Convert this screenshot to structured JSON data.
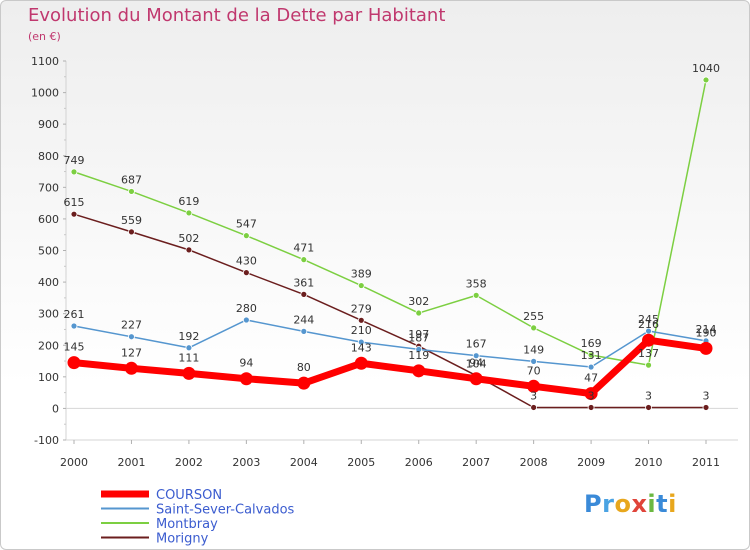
{
  "title": "Evolution du Montant de la Dette par Habitant",
  "subtitle": "(en €)",
  "brand": {
    "text": "Proxiti",
    "letters": [
      {
        "ch": "P",
        "color": "#3a8ad8"
      },
      {
        "ch": "r",
        "color": "#4aa3e3"
      },
      {
        "ch": "o",
        "color": "#e8a71d"
      },
      {
        "ch": "x",
        "color": "#e0443a"
      },
      {
        "ch": "i",
        "color": "#6bb841"
      },
      {
        "ch": "t",
        "color": "#3a8ad8"
      },
      {
        "ch": "i",
        "color": "#e8a71d"
      }
    ]
  },
  "chart_data": {
    "type": "line",
    "title": "Evolution du Montant de la Dette par Habitant",
    "subtitle": "(en €)",
    "x": [
      "2000",
      "2001",
      "2002",
      "2003",
      "2004",
      "2005",
      "2006",
      "2007",
      "2008",
      "2009",
      "2010",
      "2011"
    ],
    "ylim": [
      -100,
      1100
    ],
    "yticks": [
      -100,
      0,
      100,
      200,
      300,
      400,
      500,
      600,
      700,
      800,
      900,
      1000,
      1100
    ],
    "grid": false,
    "legend": "bottom-left",
    "series": [
      {
        "name": "COURSON",
        "color": "#ff0000",
        "values": [
          145,
          127,
          111,
          94,
          80,
          143,
          119,
          94,
          70,
          47,
          216,
          190
        ]
      },
      {
        "name": "Saint-Sever-Calvados",
        "color": "#5596cf",
        "values": [
          261,
          227,
          192,
          280,
          244,
          210,
          187,
          167,
          149,
          131,
          245,
          214
        ]
      },
      {
        "name": "Montbray",
        "color": "#7ccf41",
        "values": [
          749,
          687,
          619,
          547,
          471,
          389,
          302,
          358,
          255,
          169,
          137,
          1040
        ]
      },
      {
        "name": "Morigny",
        "color": "#6b1e1e",
        "values": [
          615,
          559,
          502,
          430,
          361,
          279,
          197,
          104,
          3,
          3,
          3,
          3
        ]
      }
    ]
  }
}
